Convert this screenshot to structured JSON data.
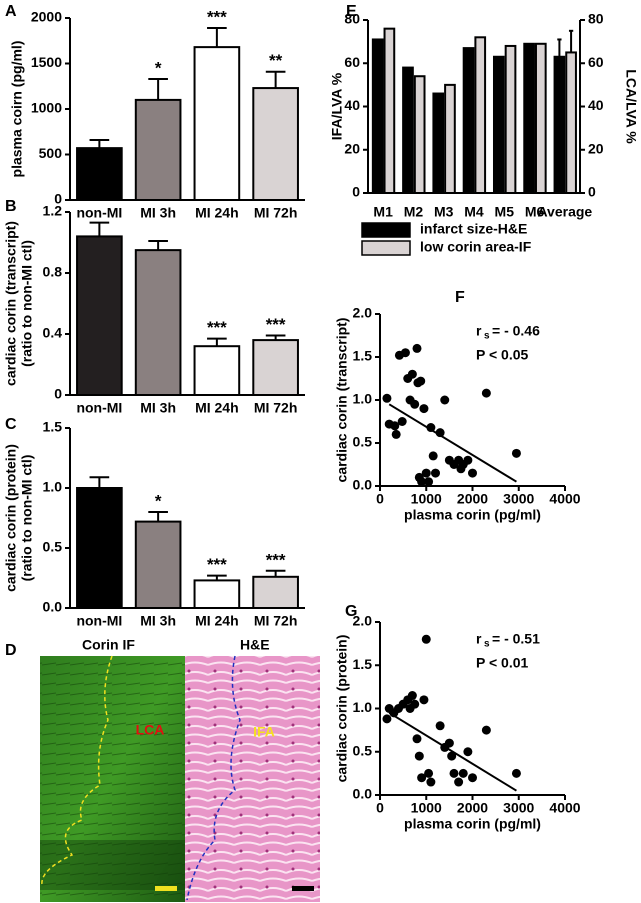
{
  "chart_data": [
    {
      "type": "bar",
      "panel_label": "A",
      "y_label": [
        "plasma coirn (pg/ml)"
      ],
      "categories": [
        "non-MI",
        "MI 3h",
        "MI 24h",
        "MI 72h"
      ],
      "values": [
        570,
        1100,
        1680,
        1230
      ],
      "errors": [
        90,
        230,
        210,
        180
      ],
      "annotations": [
        null,
        "*",
        "***",
        "**"
      ],
      "colors": [
        "#000000",
        "#8a8080",
        "#ffffff",
        "#d9d3d3"
      ],
      "ylim": [
        0,
        2000
      ],
      "yticks": [
        0,
        500,
        1000,
        1500,
        2000
      ]
    },
    {
      "type": "bar",
      "panel_label": "B",
      "y_label": [
        "cardiac corin (transcript)",
        "(ratio to non-MI ctl)"
      ],
      "categories": [
        "non-MI",
        "MI 3h",
        "MI 24h",
        "MI 72h"
      ],
      "values": [
        1.04,
        0.95,
        0.32,
        0.36
      ],
      "errors": [
        0.09,
        0.06,
        0.05,
        0.03
      ],
      "annotations": [
        null,
        null,
        "***",
        "***"
      ],
      "colors": [
        "#231f20",
        "#8a8080",
        "#ffffff",
        "#d9d3d3"
      ],
      "ylim": [
        0,
        1.2
      ],
      "yticks": [
        0,
        0.4,
        0.8,
        1.2
      ]
    },
    {
      "type": "bar",
      "panel_label": "C",
      "y_label": [
        "cardiac corin (protein)",
        "(ratio to non-MI ctl)"
      ],
      "categories": [
        "non-MI",
        "MI 3h",
        "MI 24h",
        "MI 72h"
      ],
      "values": [
        1.0,
        0.72,
        0.23,
        0.26
      ],
      "errors": [
        0.09,
        0.08,
        0.04,
        0.05
      ],
      "annotations": [
        null,
        "*",
        "***",
        "***"
      ],
      "colors": [
        "#000000",
        "#8a8080",
        "#ffffff",
        "#d9d3d3"
      ],
      "ylim": [
        0,
        1.5
      ],
      "yticks": [
        {
          "value": 0,
          "label": "0.0"
        },
        0.5,
        {
          "value": 1,
          "label": "1.0"
        },
        1.5
      ]
    },
    {
      "type": "bar",
      "panel_label": "E",
      "y_label": [
        "IFA/LVA %"
      ],
      "y2_label": [
        "LCA/LVA %"
      ],
      "categories": [
        "M1",
        "M2",
        "M3",
        "M4",
        "M5",
        "M6",
        "Average"
      ],
      "series": [
        {
          "name": "infarct size-H&E",
          "color": "#000000",
          "values": [
            71,
            58,
            46,
            67,
            63,
            69,
            63
          ],
          "errors": [
            null,
            null,
            null,
            null,
            null,
            null,
            8
          ]
        },
        {
          "name": "low corin area-IF",
          "color": "#d9d3d3",
          "axis": "y2",
          "values": [
            76,
            54,
            50,
            72,
            68,
            69,
            65
          ],
          "errors": [
            null,
            null,
            null,
            null,
            null,
            null,
            10
          ]
        }
      ],
      "ylim": [
        0,
        80
      ],
      "yticks": [
        0,
        20,
        40,
        60,
        80
      ],
      "y2lim": [
        0,
        80
      ],
      "y2ticks": [
        0,
        20,
        40,
        60,
        80
      ]
    },
    {
      "type": "scatter",
      "panel_label": "F",
      "y_label": [
        "cardiac corin (transcript)"
      ],
      "x_label": "plasma corin (pg/ml)",
      "stat_r": "r",
      "stat_r_sub": "s",
      "stat_r_value": "= - 0.46",
      "stat_p": "P < 0.05",
      "x": [
        150,
        200,
        320,
        350,
        420,
        480,
        550,
        600,
        650,
        700,
        750,
        800,
        820,
        850,
        880,
        900,
        950,
        1000,
        1050,
        1100,
        1150,
        1200,
        1300,
        1400,
        1500,
        1600,
        1700,
        1750,
        1800,
        1900,
        2000,
        2300,
        2950
      ],
      "y": [
        1.02,
        0.72,
        0.7,
        0.6,
        1.52,
        0.75,
        1.55,
        1.25,
        1.0,
        1.3,
        0.95,
        1.6,
        1.2,
        0.1,
        1.22,
        0.05,
        0.9,
        0.15,
        0.05,
        0.68,
        0.35,
        0.15,
        0.62,
        1.0,
        0.3,
        0.25,
        0.3,
        0.2,
        0.25,
        0.3,
        0.15,
        1.08,
        0.38
      ],
      "fit": {
        "x": [
          200,
          2950
        ],
        "y": [
          0.95,
          0.05
        ]
      },
      "xlim": [
        0,
        4000
      ],
      "xticks": [
        0,
        1000,
        2000,
        3000,
        4000
      ],
      "ylim": [
        0,
        2
      ],
      "yticks": [
        {
          "value": 0,
          "label": "0.0"
        },
        0.5,
        {
          "value": 1,
          "label": "1.0"
        },
        1.5,
        {
          "value": 2,
          "label": "2.0"
        }
      ]
    },
    {
      "type": "scatter",
      "panel_label": "G",
      "y_label": [
        "cardiac corin (protein)"
      ],
      "x_label": "plasma corin (pg/ml)",
      "stat_r": "r",
      "stat_r_sub": "s",
      "stat_r_value": "= - 0.51",
      "stat_p": "P < 0.01",
      "x": [
        150,
        200,
        300,
        400,
        500,
        600,
        650,
        700,
        750,
        800,
        850,
        900,
        950,
        1000,
        1050,
        1100,
        1300,
        1400,
        1500,
        1550,
        1600,
        1700,
        1800,
        1900,
        2000,
        2300,
        2950
      ],
      "y": [
        0.88,
        1.0,
        0.95,
        1.0,
        1.05,
        1.1,
        1.0,
        1.15,
        1.05,
        0.65,
        0.45,
        0.2,
        1.1,
        1.8,
        0.25,
        0.15,
        0.8,
        0.55,
        0.6,
        0.45,
        0.25,
        0.15,
        0.25,
        0.5,
        0.2,
        0.75,
        0.25
      ],
      "fit": {
        "x": [
          200,
          2950
        ],
        "y": [
          0.95,
          0.05
        ]
      },
      "xlim": [
        0,
        4000
      ],
      "xticks": [
        0,
        1000,
        2000,
        3000,
        4000
      ],
      "ylim": [
        0,
        2
      ],
      "yticks": [
        {
          "value": 0,
          "label": "0.0"
        },
        0.5,
        {
          "value": 1,
          "label": "1.0"
        },
        1.5,
        {
          "value": 2,
          "label": "2.0"
        }
      ]
    }
  ],
  "image_panel": {
    "panel_label": "D",
    "left_title": "Corin IF",
    "right_title": "H&E",
    "left_region": "LCA",
    "right_region": "IFA"
  }
}
